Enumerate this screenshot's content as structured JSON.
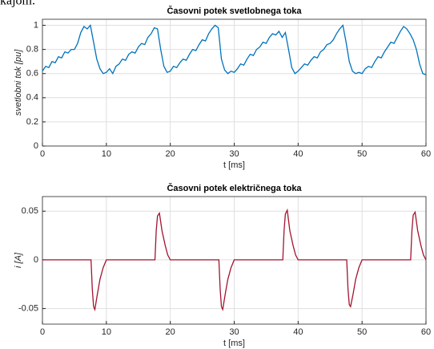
{
  "header_text": "kajom.",
  "chart_data": [
    {
      "type": "line",
      "title": "Časovni potek svetlobnega toka",
      "xlabel": "t [ms]",
      "ylabel": "svetlobni tok [pu]",
      "xlim": [
        0,
        60
      ],
      "xticks": [
        0,
        10,
        20,
        30,
        40,
        50,
        60
      ],
      "ylim": [
        0,
        1.05
      ],
      "yticks": [
        0,
        0.2,
        0.4,
        0.6,
        0.8,
        1
      ],
      "grid": true,
      "x": [
        0,
        0.5,
        1,
        1.5,
        2,
        2.5,
        3,
        3.5,
        4,
        4.5,
        5,
        5.5,
        6,
        6.5,
        7,
        7.5,
        8,
        8.5,
        9,
        9.5,
        10,
        10.5,
        11,
        11.5,
        12,
        12.5,
        13,
        13.5,
        14,
        14.5,
        15,
        15.5,
        16,
        16.5,
        17,
        17.5,
        18,
        18.5,
        19,
        19.5,
        20,
        20.5,
        21,
        21.5,
        22,
        22.5,
        23,
        23.5,
        24,
        24.5,
        25,
        25.5,
        26,
        26.5,
        27,
        27.5,
        28,
        28.5,
        29,
        29.5,
        30,
        30.5,
        31,
        31.5,
        32,
        32.5,
        33,
        33.5,
        34,
        34.5,
        35,
        35.5,
        36,
        36.5,
        37,
        37.5,
        38,
        38.5,
        39,
        39.5,
        40,
        40.5,
        41,
        41.5,
        42,
        42.5,
        43,
        43.5,
        44,
        44.5,
        45,
        45.5,
        46,
        46.5,
        47,
        47.5,
        48,
        48.5,
        49,
        49.5,
        50,
        50.5,
        51,
        51.5,
        52,
        52.5,
        53,
        53.5,
        54,
        54.5,
        55,
        55.5,
        56,
        56.5,
        57,
        57.5,
        58,
        58.5,
        59,
        59.5,
        60
      ],
      "series": [
        {
          "name": "svetlobni tok",
          "color": "#0072bd",
          "values": [
            0.62,
            0.66,
            0.65,
            0.7,
            0.69,
            0.74,
            0.73,
            0.78,
            0.77,
            0.8,
            0.8,
            0.85,
            0.94,
            0.99,
            0.97,
            1.0,
            0.86,
            0.72,
            0.64,
            0.6,
            0.61,
            0.64,
            0.6,
            0.66,
            0.68,
            0.72,
            0.71,
            0.76,
            0.78,
            0.77,
            0.82,
            0.85,
            0.84,
            0.9,
            0.93,
            0.98,
            0.97,
            0.8,
            0.66,
            0.61,
            0.62,
            0.66,
            0.65,
            0.69,
            0.72,
            0.71,
            0.76,
            0.8,
            0.79,
            0.84,
            0.88,
            0.87,
            0.93,
            0.97,
            1.0,
            0.98,
            0.72,
            0.63,
            0.6,
            0.62,
            0.61,
            0.64,
            0.68,
            0.67,
            0.72,
            0.76,
            0.75,
            0.8,
            0.82,
            0.86,
            0.85,
            0.9,
            0.93,
            0.92,
            0.95,
            0.9,
            0.94,
            0.8,
            0.65,
            0.6,
            0.62,
            0.65,
            0.68,
            0.67,
            0.71,
            0.74,
            0.73,
            0.78,
            0.8,
            0.84,
            0.85,
            0.88,
            0.93,
            0.97,
            1.0,
            0.86,
            0.7,
            0.62,
            0.6,
            0.61,
            0.6,
            0.64,
            0.66,
            0.65,
            0.7,
            0.74,
            0.73,
            0.78,
            0.82,
            0.86,
            0.85,
            0.9,
            0.95,
            0.99,
            0.97,
            0.93,
            0.88,
            0.8,
            0.68,
            0.6,
            0.59
          ]
        }
      ]
    },
    {
      "type": "line",
      "title": "Časovni potek električnega toka",
      "xlabel": "t [ms]",
      "ylabel": "i [A]",
      "xlim": [
        0,
        60
      ],
      "xticks": [
        0,
        10,
        20,
        30,
        40,
        50,
        60
      ],
      "ylim": [
        -0.066,
        0.065
      ],
      "yticks": [
        -0.05,
        0,
        0.05
      ],
      "grid": true,
      "x": [
        0,
        7.6,
        7.8,
        8.0,
        8.2,
        8.6,
        9.0,
        9.5,
        10,
        17.6,
        17.8,
        18.0,
        18.3,
        18.7,
        19.2,
        19.6,
        20,
        27.6,
        27.8,
        28.0,
        28.2,
        28.6,
        29.0,
        29.5,
        30,
        37.6,
        37.8,
        38.0,
        38.3,
        38.7,
        39.2,
        39.6,
        40,
        47.6,
        47.8,
        48.0,
        48.2,
        48.6,
        49.0,
        49.5,
        50,
        57.6,
        57.8,
        58.0,
        58.3,
        58.7,
        59.2,
        59.6,
        60
      ],
      "series": [
        {
          "name": "i",
          "color": "#a2142f",
          "values": [
            0,
            0,
            -0.03,
            -0.048,
            -0.051,
            -0.035,
            -0.02,
            -0.008,
            0,
            0,
            0.03,
            0.045,
            0.048,
            0.03,
            0.015,
            0.005,
            0,
            0,
            -0.03,
            -0.048,
            -0.051,
            -0.035,
            -0.02,
            -0.008,
            0,
            0,
            0.03,
            0.047,
            0.051,
            0.03,
            0.015,
            0.005,
            0,
            0,
            -0.03,
            -0.046,
            -0.048,
            -0.035,
            -0.02,
            -0.008,
            0,
            0,
            0.03,
            0.046,
            0.049,
            0.03,
            0.015,
            0.005,
            0
          ]
        }
      ]
    }
  ]
}
